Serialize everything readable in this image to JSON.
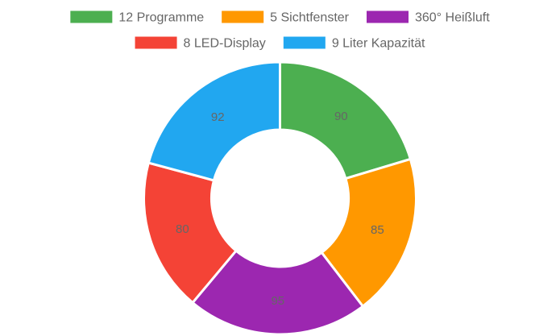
{
  "chart_data": {
    "type": "doughnut",
    "categories": [
      "12 Programme",
      "5 Sichtfenster",
      "360° Heißluft",
      "8 LED-Display",
      "9 Liter Kapazität"
    ],
    "values": [
      90,
      85,
      95,
      80,
      92
    ],
    "colors": [
      "#4caf50",
      "#ff9800",
      "#9c27b0",
      "#f44336",
      "#21a7f0"
    ],
    "legend_position": "top",
    "data_labels": true
  }
}
